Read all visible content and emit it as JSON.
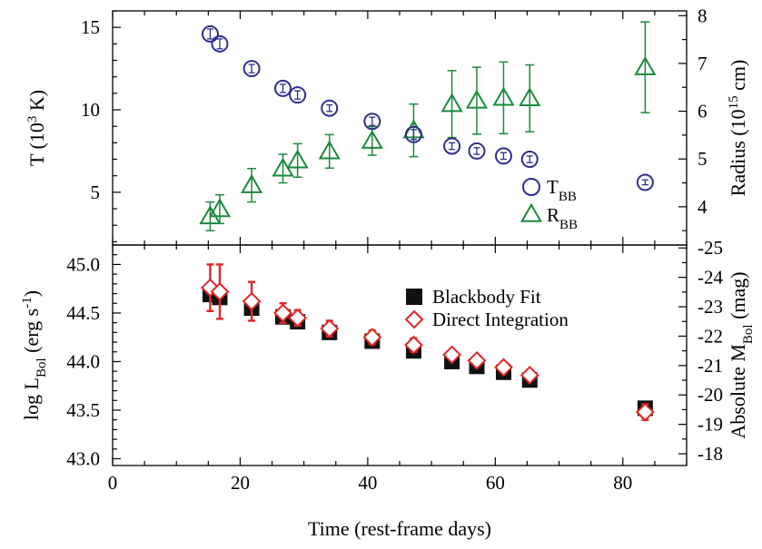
{
  "chart_data": [
    {
      "type": "scatter",
      "panel": "top",
      "x": [
        15.3,
        16.8,
        21.8,
        26.7,
        29.0,
        34.0,
        40.7,
        47.2,
        53.2,
        57.1,
        61.3,
        65.4,
        83.5
      ],
      "xlim": [
        0,
        90
      ],
      "left_axis": {
        "ylabel_text": "T (10",
        "ylabel_sup": "3",
        "ylabel_end": " K)",
        "ylim": [
          1.8,
          16
        ],
        "ticks": [
          5,
          10,
          15
        ]
      },
      "right_axis": {
        "ylabel_text": "Radius (10",
        "ylabel_sup": "15",
        "ylabel_end": " cm)",
        "ylim": [
          3.2,
          8.1
        ],
        "ticks": [
          4,
          5,
          6,
          7,
          8
        ]
      },
      "series": [
        {
          "name_main": "T",
          "name_sub": "BB",
          "color": "#2e2e8f",
          "marker": "circle",
          "axis": "left",
          "values": [
            14.6,
            14.0,
            12.5,
            11.3,
            10.9,
            10.1,
            9.3,
            8.5,
            7.8,
            7.5,
            7.2,
            7.0,
            5.6
          ],
          "errors": [
            0.3,
            0.3,
            0.25,
            0.25,
            0.25,
            0.2,
            0.25,
            0.3,
            0.2,
            0.2,
            0.2,
            0.2,
            0.15
          ]
        },
        {
          "name_main": "R",
          "name_sub": "BB",
          "color": "#1b8a3c",
          "marker": "triangle",
          "axis": "right",
          "values": [
            3.8,
            3.95,
            4.45,
            4.8,
            4.97,
            5.16,
            5.38,
            5.6,
            6.15,
            6.22,
            6.28,
            6.27,
            6.92
          ],
          "errors": [
            0.3,
            0.3,
            0.35,
            0.3,
            0.35,
            0.35,
            0.3,
            0.55,
            0.7,
            0.7,
            0.75,
            0.7,
            0.95
          ]
        }
      ]
    },
    {
      "type": "scatter",
      "panel": "bottom",
      "x": [
        15.3,
        16.8,
        21.8,
        26.7,
        29.0,
        34.0,
        40.7,
        47.2,
        53.2,
        57.1,
        61.3,
        65.4,
        83.5
      ],
      "xlabel": "Time (rest-frame days)",
      "xlim": [
        0,
        90
      ],
      "xticks": [
        0,
        20,
        40,
        60,
        80
      ],
      "left_axis": {
        "ylabel_text": "log L",
        "ylabel_sub": "Bol",
        "ylabel_mid": " (erg s",
        "ylabel_sup": "-1",
        "ylabel_end": ")",
        "ylim": [
          42.93,
          45.2
        ],
        "ticks": [
          "43.0",
          "43.5",
          "44.0",
          "44.5",
          "45.0"
        ]
      },
      "right_axis": {
        "ylabel_text": "Absolute M",
        "ylabel_sub": "Bol",
        "ylabel_end": " (mag)",
        "ylim": [
          -17.6,
          -25.1
        ],
        "ticks": [
          -18,
          -19,
          -20,
          -21,
          -22,
          -23,
          -24,
          -25
        ]
      },
      "series": [
        {
          "name": "Blackbody Fit",
          "color": "#111111",
          "marker": "square",
          "values": [
            44.69,
            44.66,
            44.55,
            44.46,
            44.41,
            44.3,
            44.21,
            44.11,
            44.0,
            43.95,
            43.89,
            43.81,
            43.52
          ],
          "errors": [
            0.03,
            0.03,
            0.03,
            0.03,
            0.03,
            0.03,
            0.03,
            0.03,
            0.02,
            0.02,
            0.02,
            0.02,
            0.03
          ]
        },
        {
          "name": "Direct Integration",
          "color": "#e32626",
          "marker": "diamond",
          "values": [
            44.76,
            44.72,
            44.62,
            44.5,
            44.45,
            44.34,
            44.25,
            44.17,
            44.07,
            44.01,
            43.94,
            43.86,
            43.48
          ],
          "errors": [
            0.24,
            0.28,
            0.2,
            0.1,
            0.08,
            0.08,
            0.07,
            0.07,
            0.05,
            0.05,
            0.05,
            0.05,
            0.08
          ]
        }
      ]
    }
  ]
}
